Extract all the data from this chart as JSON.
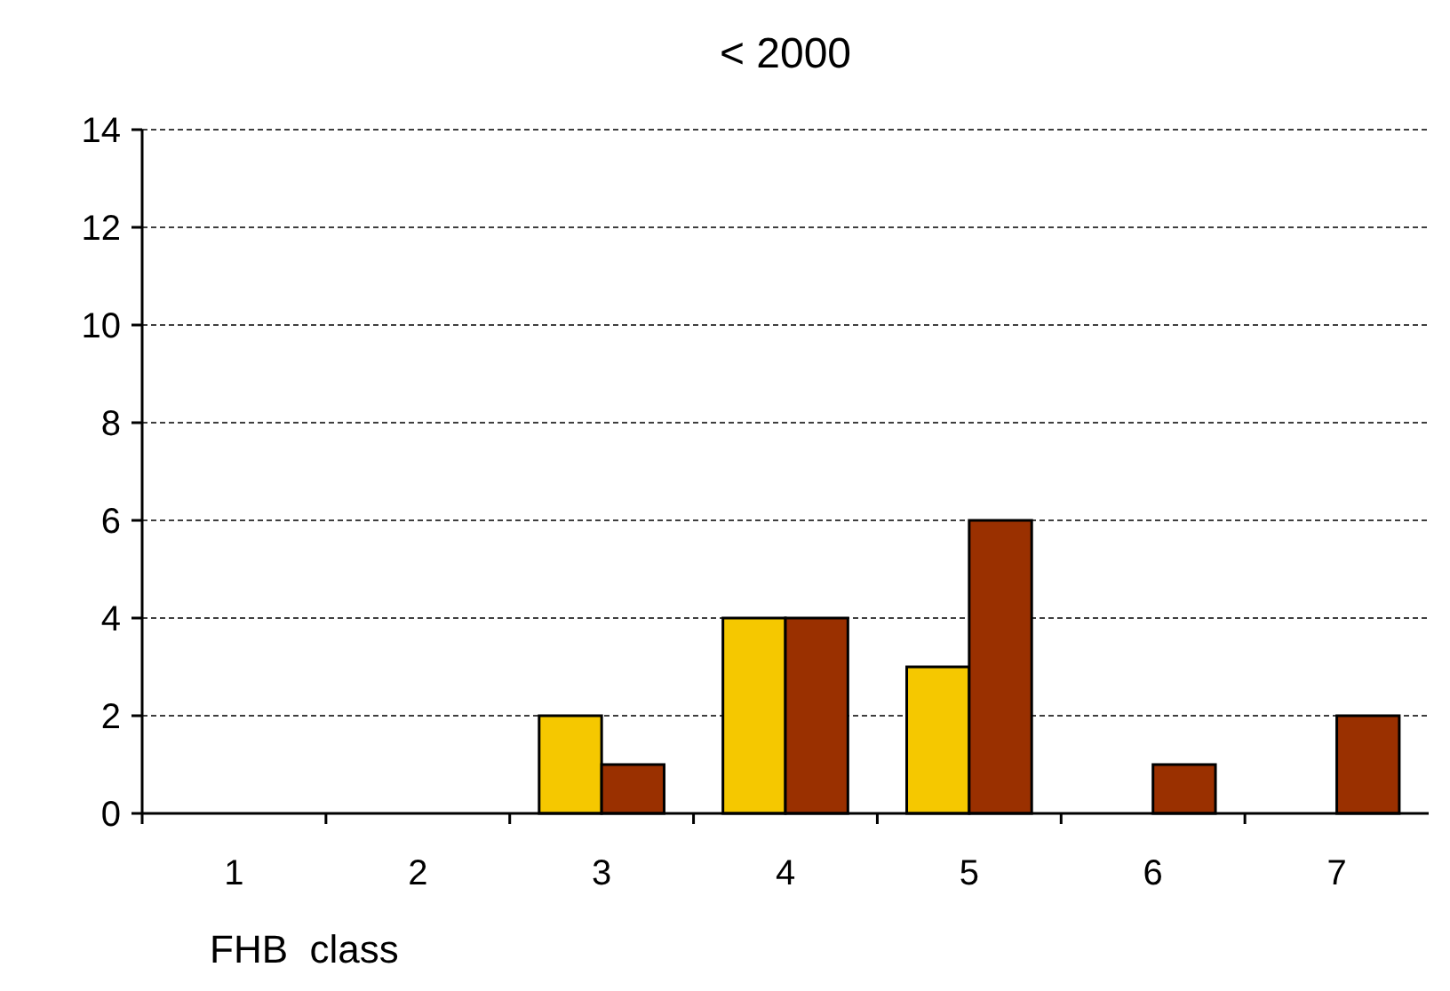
{
  "chart_data": {
    "type": "bar",
    "title": "< 2000",
    "xlabel": "FHB  class",
    "categories": [
      "1",
      "2",
      "3",
      "4",
      "5",
      "6",
      "7"
    ],
    "series": [
      {
        "color": "#f5c800",
        "values": [
          0,
          0,
          2,
          4,
          3,
          0,
          0
        ]
      },
      {
        "color": "#9a3000",
        "values": [
          0,
          0,
          1,
          4,
          6,
          1,
          2
        ]
      }
    ],
    "ylim": [
      0,
      14
    ],
    "yticks": [
      0,
      2,
      4,
      6,
      8,
      10,
      12,
      14
    ],
    "grid": "y"
  }
}
